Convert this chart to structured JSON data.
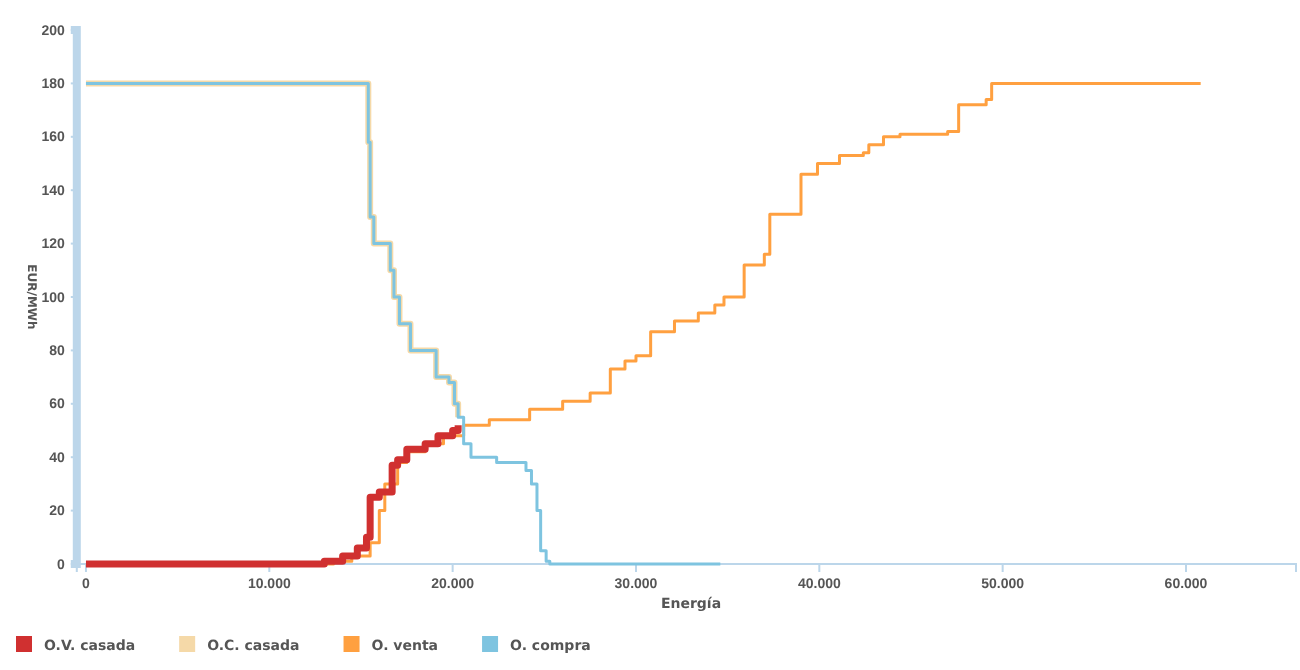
{
  "chart_data": {
    "type": "step",
    "xlabel": "Energía",
    "ylabel": "EUR/MWh",
    "xlim": [
      -500,
      66000
    ],
    "ylim": [
      0,
      200
    ],
    "xticks": [
      {
        "value": 0,
        "label": "0"
      },
      {
        "value": 10000,
        "label": "10.000"
      },
      {
        "value": 20000,
        "label": "20.000"
      },
      {
        "value": 30000,
        "label": "30.000"
      },
      {
        "value": 40000,
        "label": "40.000"
      },
      {
        "value": 50000,
        "label": "50.000"
      },
      {
        "value": 60000,
        "label": "60.000"
      }
    ],
    "yticks": [
      0,
      20,
      40,
      60,
      80,
      100,
      120,
      140,
      160,
      180,
      200
    ],
    "grid": false,
    "legend": "bottom",
    "marker": "none",
    "line_style": "solid",
    "series": [
      {
        "name": "O.C. casada",
        "color": "#f5d9a8",
        "x": [
          0,
          15300,
          15400,
          15500,
          15700,
          16500,
          16600,
          16800,
          17100,
          17700,
          18800,
          19100,
          19800,
          20100,
          20300
        ],
        "values": [
          180,
          180,
          158,
          130,
          120,
          120,
          110,
          100,
          90,
          80,
          80,
          70,
          68,
          60,
          55
        ]
      },
      {
        "name": "O. venta",
        "color": "#ffa040",
        "x": [
          0,
          12000,
          13500,
          14500,
          15500,
          16000,
          16300,
          17000,
          17500,
          18500,
          19500,
          20600,
          22000,
          24200,
          26000,
          27500,
          28600,
          29400,
          30000,
          30800,
          32100,
          33400,
          34300,
          34800,
          35900,
          37000,
          37300,
          39000,
          39900,
          41100,
          42400,
          42700,
          43500,
          44400,
          47000,
          47600,
          49100,
          49400,
          60800
        ],
        "values": [
          0,
          0,
          1,
          3,
          8,
          20,
          30,
          38,
          42,
          45,
          48,
          52,
          54,
          58,
          61,
          64,
          73,
          76,
          78,
          87,
          91,
          94,
          97,
          100,
          112,
          116,
          131,
          146,
          150,
          153,
          154,
          157,
          160,
          161,
          162,
          172,
          174,
          180,
          180
        ]
      },
      {
        "name": "O. compra",
        "color": "#7ec4e0",
        "x": [
          0,
          15300,
          15400,
          15500,
          15700,
          16500,
          16600,
          16800,
          17100,
          17700,
          18800,
          19100,
          19800,
          20100,
          20300,
          20600,
          21000,
          22400,
          24000,
          24300,
          24600,
          24800,
          25100,
          25300,
          34600
        ],
        "values": [
          180,
          180,
          158,
          130,
          120,
          120,
          110,
          100,
          90,
          80,
          80,
          70,
          68,
          60,
          55,
          45,
          40,
          38,
          35,
          30,
          20,
          5,
          1,
          0,
          0
        ]
      },
      {
        "name": "O.V. casada",
        "color": "#d03030",
        "x": [
          0,
          12300,
          13000,
          14000,
          14800,
          15300,
          15500,
          16000,
          16700,
          17000,
          17500,
          18500,
          19200,
          20000,
          20300
        ],
        "values": [
          0,
          0,
          1,
          3,
          6,
          10,
          25,
          27,
          37,
          39,
          43,
          45,
          48,
          50,
          52
        ]
      }
    ]
  }
}
